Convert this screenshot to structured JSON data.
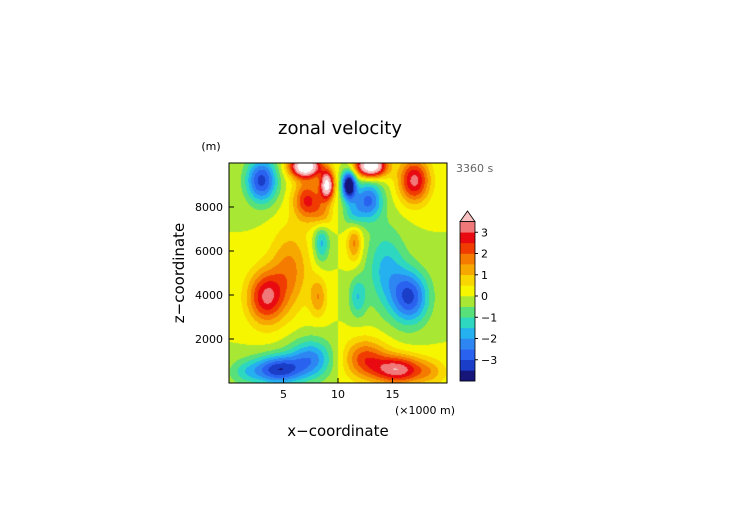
{
  "chart_data": {
    "type": "heatmap",
    "title": "zonal velocity",
    "time_label": "3360 s",
    "y_unit": "(m)",
    "x_unit": "(×1000 m)",
    "xlabel": "x−coordinate",
    "ylabel": "z−coordinate",
    "xlim": [
      0,
      20
    ],
    "ylim": [
      0,
      10000
    ],
    "x_ticks": [
      {
        "value": 5,
        "label": "5"
      },
      {
        "value": 10,
        "label": "10"
      },
      {
        "value": 15,
        "label": "15"
      }
    ],
    "y_ticks": [
      {
        "value": 2000,
        "label": "2000"
      },
      {
        "value": 4000,
        "label": "4000"
      },
      {
        "value": 6000,
        "label": "6000"
      },
      {
        "value": 8000,
        "label": "8000"
      }
    ],
    "colorbar": {
      "levels": [
        -3.5,
        -3,
        -2.5,
        -2,
        -1.5,
        -1,
        -0.5,
        0,
        0.5,
        1,
        1.5,
        2,
        2.5,
        3,
        3.5
      ],
      "colors": [
        "#15157a",
        "#1a3ec8",
        "#2a62f0",
        "#2e86f2",
        "#25b0ef",
        "#2ed8c0",
        "#58e07a",
        "#a8e834",
        "#f6f600",
        "#f8d600",
        "#f7a800",
        "#f47a00",
        "#f03c00",
        "#e80a10",
        "#f07878",
        "#f8c0c0"
      ],
      "tick_labels": [
        {
          "value": 3,
          "label": "3"
        },
        {
          "value": 2,
          "label": "2"
        },
        {
          "value": 1,
          "label": "1"
        },
        {
          "value": 0,
          "label": "0"
        },
        {
          "value": -1,
          "label": "−1"
        },
        {
          "value": -2,
          "label": "−2"
        },
        {
          "value": -3,
          "label": "−3"
        }
      ],
      "extend": "both"
    },
    "features": [
      {
        "x": 1.5,
        "z": 500,
        "u": -1.0,
        "sx": 1.6,
        "sz": 600
      },
      {
        "x": 4.5,
        "z": 600,
        "u": -3.3,
        "sx": 2.2,
        "sz": 650
      },
      {
        "x": 7.5,
        "z": 1100,
        "u": -2.2,
        "sx": 2.0,
        "sz": 900
      },
      {
        "x": 15.5,
        "z": 600,
        "u": 3.3,
        "sx": 2.2,
        "sz": 650
      },
      {
        "x": 12.5,
        "z": 1100,
        "u": 2.2,
        "sx": 2.0,
        "sz": 900
      },
      {
        "x": 18.5,
        "z": 500,
        "u": 1.0,
        "sx": 1.6,
        "sz": 600
      },
      {
        "x": 3.4,
        "z": 3900,
        "u": 3.0,
        "sx": 1.7,
        "sz": 1200
      },
      {
        "x": 5.6,
        "z": 5200,
        "u": 1.6,
        "sx": 1.8,
        "sz": 1800
      },
      {
        "x": 16.6,
        "z": 3900,
        "u": -3.0,
        "sx": 1.7,
        "sz": 1200
      },
      {
        "x": 14.4,
        "z": 5200,
        "u": -1.6,
        "sx": 1.8,
        "sz": 1800
      },
      {
        "x": 8.2,
        "z": 3900,
        "u": 1.4,
        "sx": 0.8,
        "sz": 900
      },
      {
        "x": 11.8,
        "z": 3900,
        "u": -1.4,
        "sx": 0.8,
        "sz": 900
      },
      {
        "x": 8.5,
        "z": 6400,
        "u": -1.7,
        "sx": 0.7,
        "sz": 900
      },
      {
        "x": 11.5,
        "z": 6400,
        "u": 1.7,
        "sx": 0.7,
        "sz": 900
      },
      {
        "x": 8.6,
        "z": 7600,
        "u": 1.2,
        "sx": 0.9,
        "sz": 700
      },
      {
        "x": 11.4,
        "z": 7600,
        "u": -1.2,
        "sx": 0.9,
        "sz": 700
      },
      {
        "x": 7.2,
        "z": 8300,
        "u": 2.6,
        "sx": 1.3,
        "sz": 900
      },
      {
        "x": 12.8,
        "z": 8300,
        "u": -2.6,
        "sx": 1.3,
        "sz": 900
      },
      {
        "x": 9.0,
        "z": 9000,
        "u": 4.5,
        "sx": 0.65,
        "sz": 650
      },
      {
        "x": 11.0,
        "z": 9000,
        "u": -4.5,
        "sx": 0.65,
        "sz": 650
      },
      {
        "x": 3.0,
        "z": 9200,
        "u": -3.2,
        "sx": 1.4,
        "sz": 1000
      },
      {
        "x": 17.0,
        "z": 9200,
        "u": 3.2,
        "sx": 1.4,
        "sz": 1000
      },
      {
        "x": 7.0,
        "z": 9850,
        "u": 5.5,
        "sx": 1.4,
        "sz": 500
      },
      {
        "x": 13.0,
        "z": 9850,
        "u": 5.5,
        "sx": 1.4,
        "sz": 500
      }
    ]
  }
}
